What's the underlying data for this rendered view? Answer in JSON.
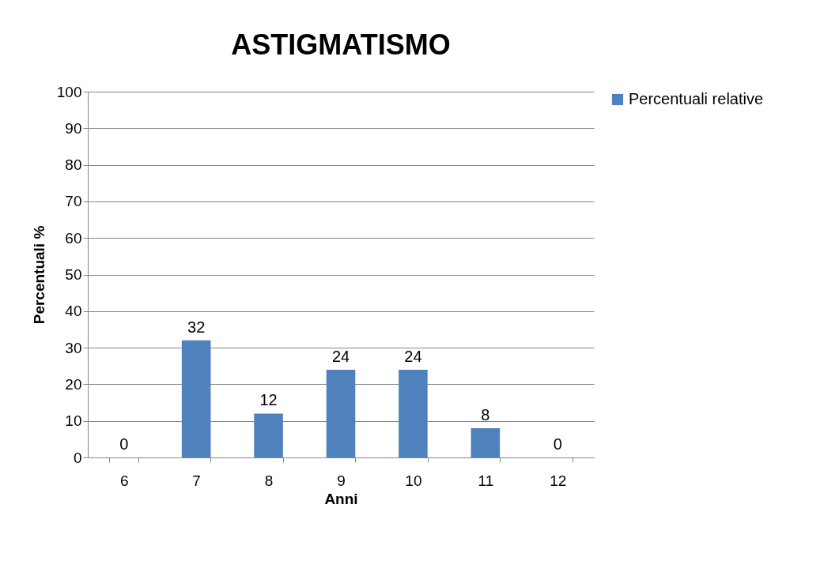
{
  "chart_data": {
    "type": "bar",
    "title": "ASTIGMATISMO",
    "xlabel": "Anni",
    "ylabel": "Percentuali %",
    "categories": [
      "6",
      "7",
      "8",
      "9",
      "10",
      "11",
      "12"
    ],
    "series": [
      {
        "name": "Percentuali relative",
        "color": "#4f81bd",
        "values": [
          0,
          32,
          12,
          24,
          24,
          8,
          0
        ]
      }
    ],
    "ylim": [
      0,
      100
    ],
    "yticks": [
      0,
      10,
      20,
      30,
      40,
      50,
      60,
      70,
      80,
      90,
      100
    ],
    "grid": "y",
    "legend": "right",
    "data_labels": true
  }
}
